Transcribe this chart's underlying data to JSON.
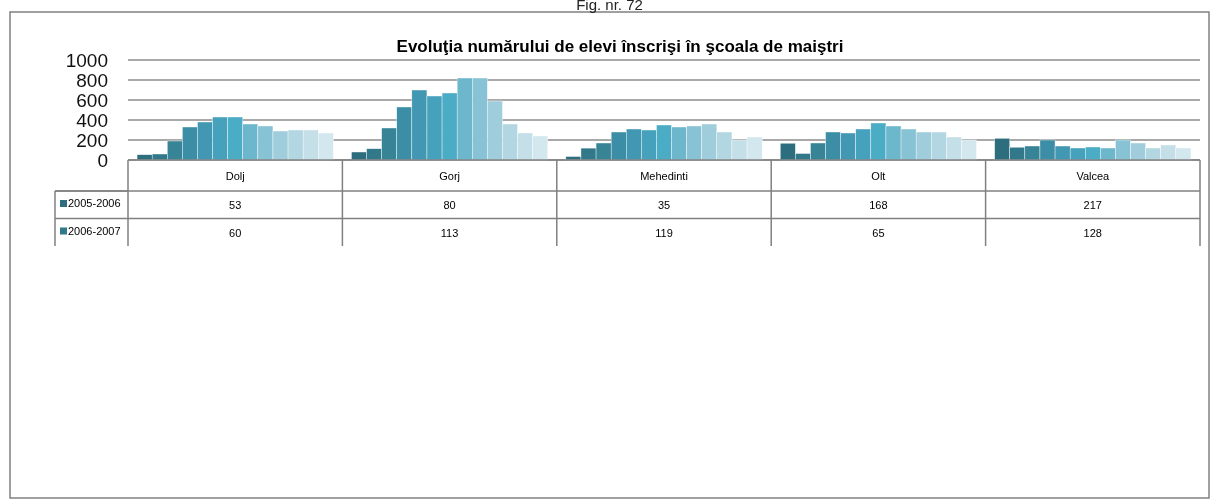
{
  "chart_data": {
    "type": "bar",
    "title": "Evoluţia numărului de elevi înscrişi în şcoala de maiştri",
    "annotations": [
      "Fig. nr. 72"
    ],
    "categories": [
      "Dolj",
      "Gorj",
      "Mehedinti",
      "Olt",
      "Valcea"
    ],
    "series": [
      {
        "name": "2005-2006",
        "color": "#2d6e7e",
        "values": [
          53,
          80,
          35,
          168,
          217
        ],
        "value_labels": [
          "53",
          "80",
          "35",
          "168",
          "217"
        ]
      },
      {
        "name": "2006-2007",
        "color": "#31788a",
        "values": [
          60,
          113,
          119,
          65,
          128
        ],
        "value_labels": [
          "60",
          "113",
          "119",
          "65",
          "128"
        ]
      },
      {
        "color": "#378496",
        "values": [
          190,
          320,
          170,
          170,
          140
        ]
      },
      {
        "color": "#3b8ea6",
        "values": [
          330,
          530,
          280,
          280,
          200
        ]
      },
      {
        "color": "#4298b2",
        "values": [
          380,
          700,
          310,
          270,
          140
        ]
      },
      {
        "color": "#46a2bc",
        "values": [
          430,
          640,
          300,
          310,
          120
        ]
      },
      {
        "color": "#4bacc6",
        "values": [
          430,
          670,
          350,
          370,
          130
        ]
      },
      {
        "color": "#6db7cd",
        "values": [
          360,
          820,
          330,
          340,
          120
        ]
      },
      {
        "color": "#88c2d5",
        "values": [
          340,
          820,
          340,
          310,
          200
        ]
      },
      {
        "color": "#a0cddc",
        "values": [
          290,
          590,
          360,
          280,
          170
        ]
      },
      {
        "color": "#b3d7e2",
        "values": [
          300,
          360,
          280,
          280,
          120
        ]
      },
      {
        "color": "#c4dfe8",
        "values": [
          300,
          270,
          200,
          230,
          150
        ]
      },
      {
        "color": "#d2e7ee",
        "values": [
          270,
          240,
          230,
          200,
          120
        ]
      }
    ],
    "ylim": [
      0,
      1000
    ],
    "yticks": [
      0,
      200,
      400,
      600,
      800,
      1000
    ],
    "grid": "y",
    "legend": "bottom"
  }
}
